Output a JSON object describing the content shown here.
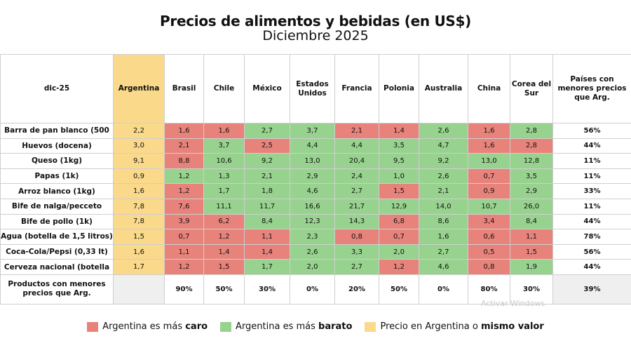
{
  "title": "Precios de alimentos y bebidas (en US$)",
  "subtitle": "Diciembre 2025",
  "table": {
    "corner": "dic-25",
    "countries": [
      "Argentina",
      "Brasil",
      "Chile",
      "México",
      "Estados Unidos",
      "Francia",
      "Polonia",
      "Australia",
      "China",
      "Corea del Sur"
    ],
    "last_header": "Países con menores precios que Arg.",
    "rows": [
      {
        "label": "Barra de pan blanco (500",
        "values": [
          "2,2",
          "1,6",
          "1,6",
          "2,7",
          "3,7",
          "2,1",
          "1,4",
          "2,6",
          "1,6",
          "2,8"
        ],
        "pct": "56%"
      },
      {
        "label": "Huevos (docena)",
        "values": [
          "3,0",
          "2,1",
          "3,7",
          "2,5",
          "4,4",
          "4,4",
          "3,5",
          "4,7",
          "1,6",
          "2,8"
        ],
        "pct": "44%"
      },
      {
        "label": "Queso (1kg)",
        "values": [
          "9,1",
          "8,8",
          "10,6",
          "9,2",
          "13,0",
          "20,4",
          "9,5",
          "9,2",
          "13,0",
          "12,8"
        ],
        "pct": "11%"
      },
      {
        "label": "Papas (1k)",
        "values": [
          "0,9",
          "1,2",
          "1,3",
          "2,1",
          "2,9",
          "2,4",
          "1,0",
          "2,6",
          "0,7",
          "3,5"
        ],
        "pct": "11%"
      },
      {
        "label": "Arroz blanco (1kg)",
        "values": [
          "1,6",
          "1,2",
          "1,7",
          "1,8",
          "4,6",
          "2,7",
          "1,5",
          "2,1",
          "0,9",
          "2,9"
        ],
        "pct": "33%"
      },
      {
        "label": "Bife de nalga/pecceto",
        "values": [
          "7,8",
          "7,6",
          "11,1",
          "11,7",
          "16,6",
          "21,7",
          "12,9",
          "14,0",
          "10,7",
          "26,0"
        ],
        "pct": "11%"
      },
      {
        "label": "Bife de pollo (1k)",
        "values": [
          "7,8",
          "3,9",
          "6,2",
          "8,4",
          "12,3",
          "14,3",
          "6,8",
          "8,6",
          "3,4",
          "8,4"
        ],
        "pct": "44%"
      },
      {
        "label": "Agua (botella de 1,5 litros)",
        "values": [
          "1,5",
          "0,7",
          "1,2",
          "1,1",
          "2,3",
          "0,8",
          "0,7",
          "1,6",
          "0,6",
          "1,1"
        ],
        "pct": "78%"
      },
      {
        "label": "Coca-Cola/Pepsi (0,33 lt)",
        "values": [
          "1,6",
          "1,1",
          "1,4",
          "1,4",
          "2,6",
          "3,3",
          "2,0",
          "2,7",
          "0,5",
          "1,5"
        ],
        "pct": "56%"
      },
      {
        "label": "Cerveza nacional (botella",
        "values": [
          "1,7",
          "1,2",
          "1,5",
          "1,7",
          "2,0",
          "2,7",
          "1,2",
          "4,6",
          "0,8",
          "1,9"
        ],
        "pct": "44%"
      }
    ],
    "footer": {
      "label": "Productos con menores precios que Arg.",
      "values": [
        "",
        "90%",
        "50%",
        "30%",
        "0%",
        "20%",
        "50%",
        "0%",
        "80%",
        "30%"
      ],
      "pct": "39%"
    }
  },
  "legend": {
    "red": {
      "prefix": "Argentina es más ",
      "bold": "caro",
      "color": "#e8837c"
    },
    "green": {
      "prefix": "Argentina es más ",
      "bold": "barato",
      "color": "#98d28f"
    },
    "yellow": {
      "prefix": "Precio en Argentina o ",
      "bold": "mismo valor",
      "color": "#fbd98a"
    }
  },
  "watermark": "Activar Windows"
}
